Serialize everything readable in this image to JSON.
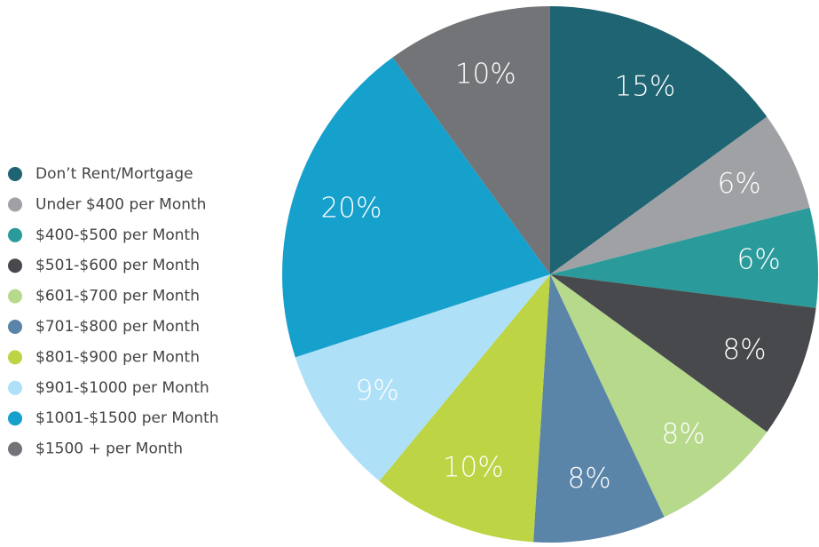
{
  "chart_data": {
    "type": "pie",
    "categories": [
      "Don’t Rent/Mortgage",
      "Under $400 per Month",
      "$400-$500 per Month",
      "$501-$600 per Month",
      "$601-$700 per Month",
      "$701-$800 per Month",
      "$801-$900 per Month",
      "$901-$1000 per Month",
      "$1001-$1500 per Month",
      "$1500 + per Month"
    ],
    "values": [
      15,
      6,
      6,
      8,
      8,
      8,
      10,
      9,
      20,
      10
    ],
    "value_labels": [
      "15%",
      "6%",
      "6%",
      "8%",
      "8%",
      "8%",
      "10%",
      "9%",
      "20%",
      "10%"
    ],
    "colors": [
      "#1e6472",
      "#a0a1a5",
      "#2a9a9a",
      "#48494c",
      "#b6d98c",
      "#5a84a8",
      "#bdd444",
      "#aee0f8",
      "#16a0cc",
      "#727478"
    ],
    "legend": "left"
  }
}
